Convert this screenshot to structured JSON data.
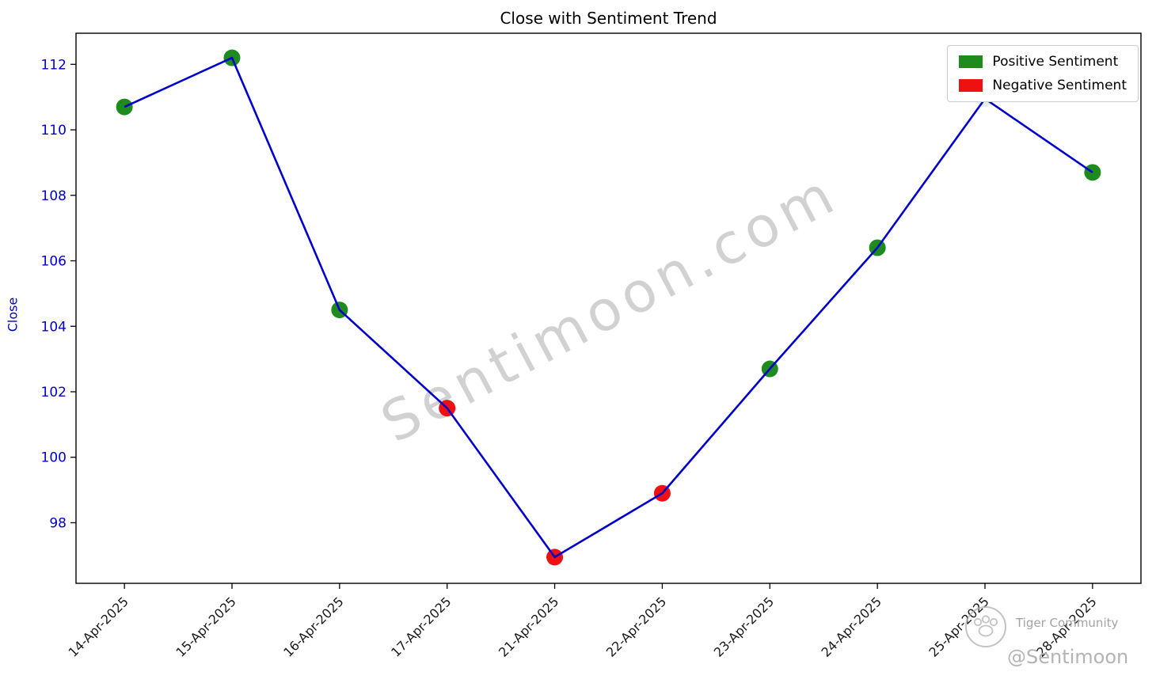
{
  "figure": {
    "watermark": "Sentimoon.com",
    "footer": {
      "community_label": "Tiger Community",
      "handle": "@Sentimoon"
    }
  },
  "chart_data": {
    "type": "line",
    "title": "Close with Sentiment Trend",
    "xlabel": "",
    "ylabel": "Close",
    "categories": [
      "14-Apr-2025",
      "15-Apr-2025",
      "16-Apr-2025",
      "17-Apr-2025",
      "21-Apr-2025",
      "22-Apr-2025",
      "23-Apr-2025",
      "24-Apr-2025",
      "25-Apr-2025",
      "28-Apr-2025"
    ],
    "series": [
      {
        "name": "Close",
        "color": "#0000cd",
        "values": [
          110.7,
          112.2,
          104.5,
          101.5,
          96.95,
          98.9,
          102.7,
          106.4,
          110.95,
          108.7
        ]
      }
    ],
    "point_sentiments": [
      "positive",
      "positive",
      "positive",
      "negative",
      "negative",
      "negative",
      "positive",
      "positive",
      "positive",
      "positive"
    ],
    "point_colors": [
      "#1e8b1e",
      "#1e8b1e",
      "#1e8b1e",
      "#ee1111",
      "#ee1111",
      "#ee1111",
      "#1e8b1e",
      "#1e8b1e",
      "#e4f1e4",
      "#1e8b1e"
    ],
    "yticks": [
      98,
      100,
      102,
      104,
      106,
      108,
      110,
      112
    ],
    "ylim": [
      96.15,
      112.95
    ],
    "axis_tick_color": "#0000cd",
    "axis_label_color": "#0000cd",
    "grid": false,
    "legend_position": "upper right",
    "legend": [
      {
        "label": "Positive Sentiment",
        "color": "#1e8b1e"
      },
      {
        "label": "Negative Sentiment",
        "color": "#ee1111"
      }
    ]
  }
}
